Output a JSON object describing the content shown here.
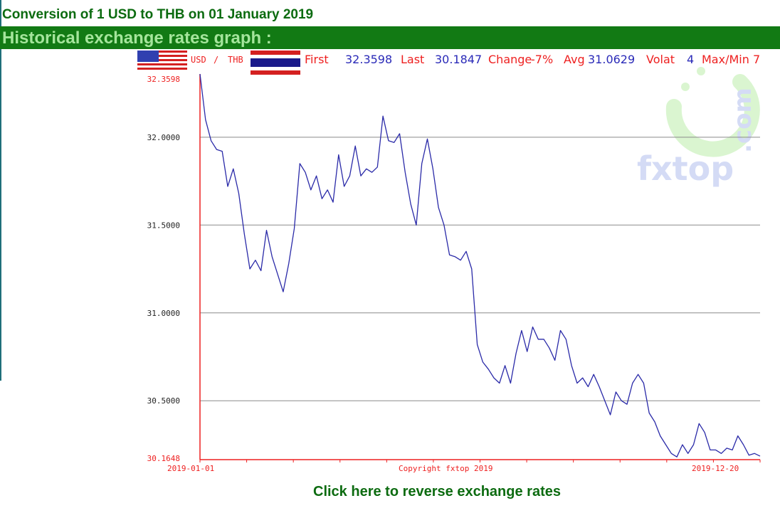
{
  "page": {
    "title": "Conversion of 1 USD to THB on 01 January 2019",
    "banner": "Historical exchange rates graph :",
    "reverse_link": "Click here to reverse exchange rates"
  },
  "chart_header": {
    "pair_base": "USD",
    "pair_sep": "/",
    "pair_quote": "THB",
    "first_label": "First",
    "first_value": "32.3598",
    "last_label": "Last",
    "last_value": "30.1847",
    "change_label": "Change",
    "change_value": "-7%",
    "avg_label": "Avg",
    "avg_value": "31.0629",
    "volat_label": "Volat",
    "volat_value": "4",
    "maxmin_label": "Max/Min 7"
  },
  "watermark": {
    "brand": "fxtop",
    "domain": ".com"
  },
  "colors": {
    "line": "#2a2aa8",
    "axis": "#ee2020",
    "grid": "#8a8a8a",
    "header_red": "#ee2020",
    "header_blue": "#2a2ab8",
    "banner": "#127a14"
  },
  "chart_data": {
    "type": "line",
    "title": "",
    "xlabel": "",
    "ylabel": "",
    "x_labels": [
      "2019-01-01",
      "Copyright fxtop 2019",
      "2019-12-20"
    ],
    "y_ticks": [
      "32.3598",
      "32.0000",
      "31.5000",
      "31.0000",
      "30.5000",
      "30.1648"
    ],
    "ylim": [
      30.1648,
      32.3598
    ],
    "grid": true,
    "series": [
      {
        "values": [
          32.3598,
          32.1,
          31.98,
          31.93,
          31.92,
          31.72,
          31.82,
          31.68,
          31.45,
          31.25,
          31.3,
          31.24,
          31.47,
          31.32,
          31.22,
          31.12,
          31.28,
          31.48,
          31.85,
          31.8,
          31.7,
          31.78,
          31.65,
          31.7,
          31.63,
          31.9,
          31.72,
          31.78,
          31.95,
          31.78,
          31.82,
          31.8,
          31.83,
          32.12,
          31.98,
          31.97,
          32.02,
          31.8,
          31.62,
          31.5,
          31.85,
          31.99,
          31.82,
          31.6,
          31.5,
          31.33,
          31.32,
          31.3,
          31.35,
          31.25,
          30.82,
          30.72,
          30.68,
          30.63,
          30.6,
          30.7,
          30.6,
          30.77,
          30.9,
          30.78,
          30.92,
          30.85,
          30.85,
          30.8,
          30.73,
          30.9,
          30.85,
          30.7,
          30.6,
          30.63,
          30.58,
          30.65,
          30.58,
          30.5,
          30.42,
          30.55,
          30.5,
          30.48,
          30.6,
          30.65,
          30.6,
          30.43,
          30.38,
          30.3,
          30.25,
          30.2,
          30.18,
          30.25,
          30.2,
          30.25,
          30.37,
          30.32,
          30.22,
          30.22,
          30.2,
          30.23,
          30.22,
          30.3,
          30.25,
          30.19,
          30.2,
          30.1847
        ]
      }
    ]
  }
}
